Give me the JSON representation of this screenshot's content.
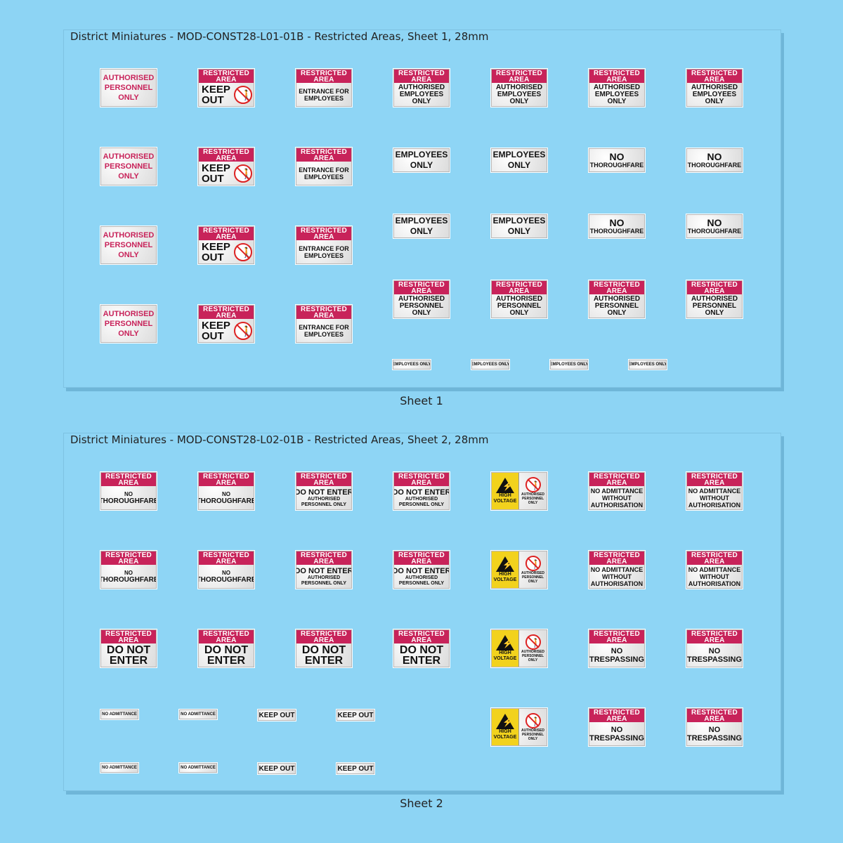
{
  "sheet1": {
    "title": "District Miniatures - MOD-CONST28-L01-01B - Restricted Areas, Sheet 1, 28mm",
    "caption": "Sheet 1"
  },
  "sheet2": {
    "title": "District Miniatures - MOD-CONST28-L02-01B - Restricted Areas, Sheet 2, 28mm",
    "caption": "Sheet 2"
  },
  "text": {
    "restricted_area": [
      "RESTRICTED",
      "AREA"
    ],
    "authorised_personnel_only": [
      "AUTHORISED",
      "PERSONNEL",
      "ONLY"
    ],
    "keep_out": [
      "KEEP",
      "OUT"
    ],
    "entrance_for_employees": [
      "ENTRANCE FOR",
      "EMPLOYEES"
    ],
    "authorised_employees_only": [
      "AUTHORISED",
      "EMPLOYEES",
      "ONLY"
    ],
    "employees_only": [
      "EMPLOYEES",
      "ONLY"
    ],
    "no_thoroughfare": [
      "NO",
      "THOROUGHFARE"
    ],
    "employees_only_small": "EMPLOYEES ONLY",
    "do_not_enter_line": "DO NOT ENTER",
    "authorised_personnel_only_small": [
      "AUTHORISED",
      "PERSONNEL ONLY"
    ],
    "high_voltage": [
      "HIGH",
      "VOLTAGE"
    ],
    "hv_right": [
      "AUTHORISED",
      "PERSONNEL",
      "ONLY"
    ],
    "no_admittance_without_authorisation": [
      "NO ADMITTANCE",
      "WITHOUT",
      "AUTHORISATION"
    ],
    "do_not_enter_big": [
      "DO NOT",
      "ENTER"
    ],
    "no_trespassing": [
      "NO",
      "TRESPASSING"
    ],
    "no_admittance_small": "NO ADMITTANCE",
    "keep_out_small": "KEEP OUT"
  },
  "colors": {
    "brand_red": "#c8235a",
    "hv_yellow": "#f2d21d",
    "sheet_bg": "#8ed5f5"
  },
  "icons": [
    "no-pedestrian-icon",
    "high-voltage-icon"
  ]
}
